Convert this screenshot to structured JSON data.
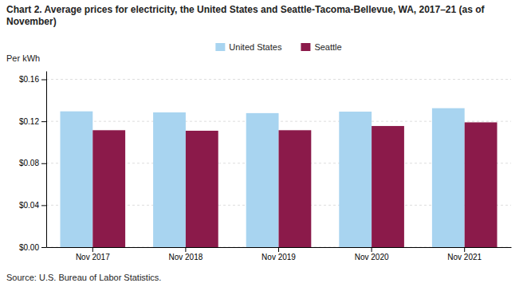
{
  "chart_data": {
    "type": "bar",
    "title": "Chart 2. Average prices for electricity, the United States and Seattle-Tacoma-Bellevue, WA, 2017–21 (as of November)",
    "ylabel": "Per kWh",
    "annotations": [
      "Source: U.S. Bureau of Labor Statistics."
    ],
    "categories": [
      "Nov 2017",
      "Nov 2018",
      "Nov 2019",
      "Nov 2020",
      "Nov 2021"
    ],
    "series": [
      {
        "name": "United States",
        "color": "#a8d4f0",
        "values": [
          0.1295,
          0.1285,
          0.1278,
          0.1292,
          0.1325
        ]
      },
      {
        "name": "Seattle",
        "color": "#8b1a4a",
        "values": [
          0.1115,
          0.111,
          0.1115,
          0.1155,
          0.119
        ]
      }
    ],
    "ylim": [
      0.0,
      0.168
    ],
    "yticks": [
      {
        "value": 0.0,
        "label": "$0.00"
      },
      {
        "value": 0.04,
        "label": "$0.04"
      },
      {
        "value": 0.08,
        "label": "$0.08"
      },
      {
        "value": 0.12,
        "label": "$0.12"
      },
      {
        "value": 0.16,
        "label": "$0.16"
      }
    ],
    "grid": true,
    "legend": "top"
  }
}
